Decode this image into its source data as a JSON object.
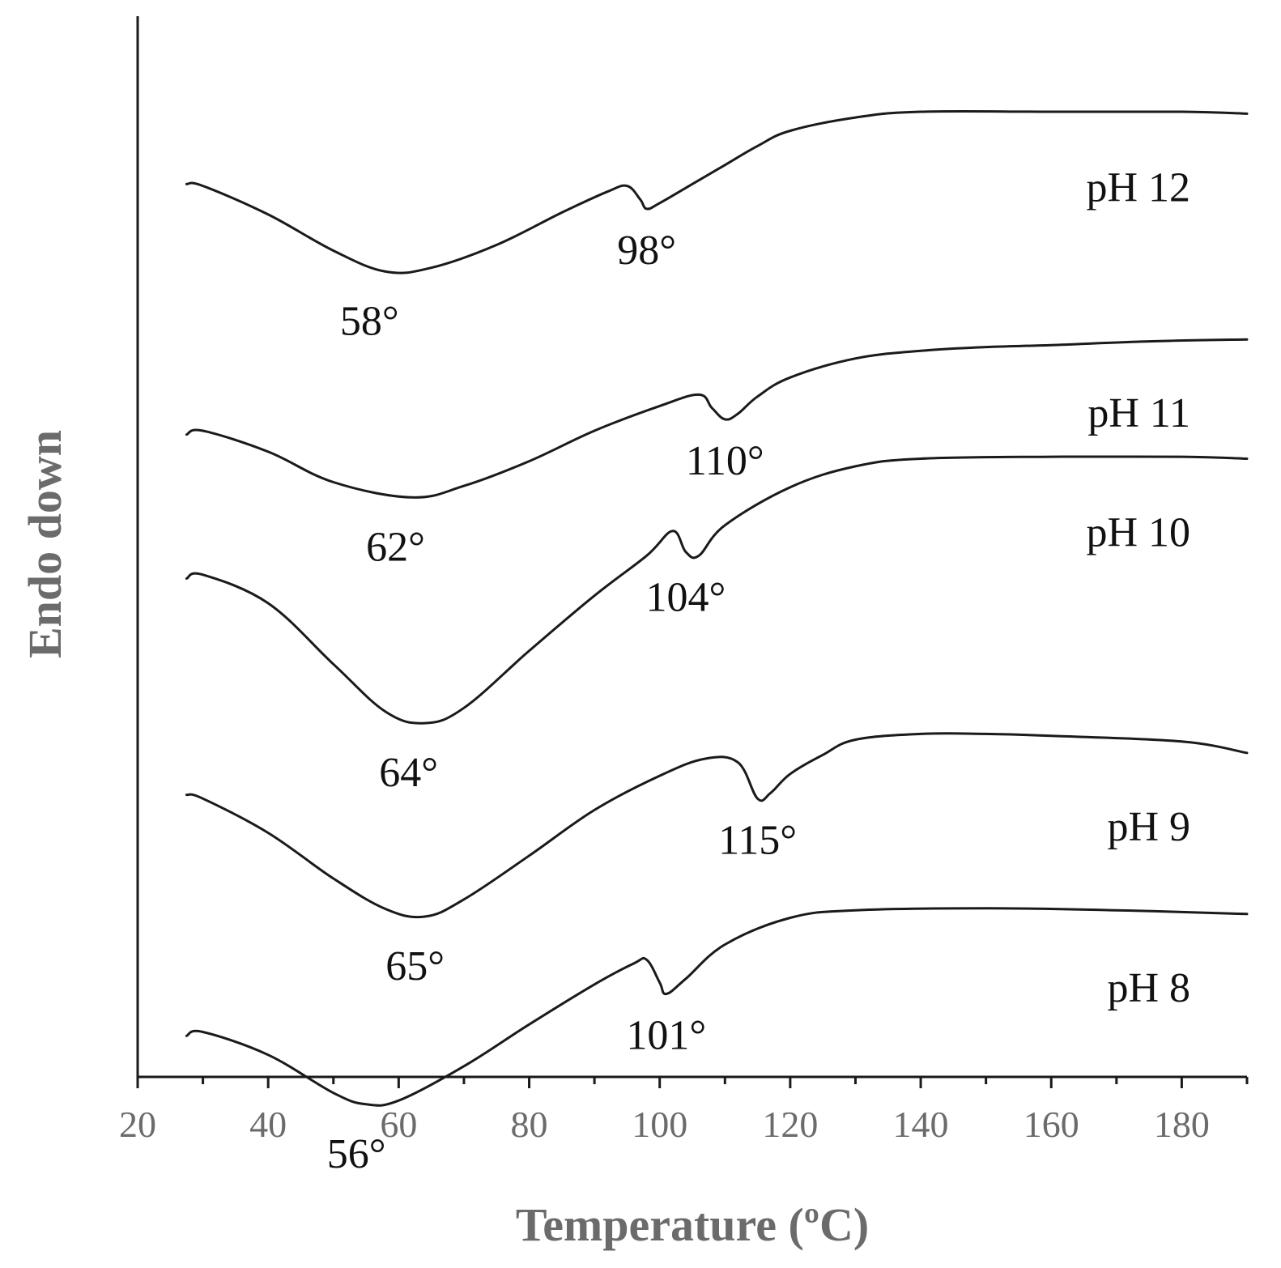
{
  "chart_data": {
    "type": "line",
    "title": "",
    "xlabel": "Temperature (ºC)",
    "ylabel": "Endo down",
    "xlim": [
      20,
      190
    ],
    "xticks": [
      20,
      40,
      60,
      80,
      100,
      120,
      140,
      160,
      180
    ],
    "minor_step": 10,
    "grid": false,
    "series": [
      {
        "name": "pH 12",
        "label": "pH 12",
        "baseline": 4,
        "x": [
          27.5,
          30,
          40,
          50,
          58,
          65,
          75,
          85,
          92,
          95,
          97,
          98,
          100,
          105,
          110,
          115,
          120,
          130,
          140,
          160,
          180,
          190
        ],
        "y": [
          0.82,
          0.81,
          0.66,
          0.47,
          0.36,
          0.38,
          0.5,
          0.67,
          0.78,
          0.81,
          0.74,
          0.69,
          0.72,
          0.82,
          0.92,
          1.02,
          1.1,
          1.17,
          1.2,
          1.2,
          1.2,
          1.19
        ],
        "annotations": [
          {
            "text": "58°",
            "x": 58,
            "y": 0.36,
            "position": "below"
          },
          {
            "text": "98°",
            "x": 98,
            "y": 0.69,
            "position": "below"
          }
        ]
      },
      {
        "name": "pH 11",
        "label": "pH 11",
        "baseline": 3,
        "x": [
          27.5,
          30,
          40,
          50,
          62,
          70,
          80,
          90,
          100,
          106,
          108,
          110,
          112,
          115,
          120,
          130,
          140,
          150,
          160,
          175,
          190
        ],
        "y": [
          0.78,
          0.8,
          0.69,
          0.53,
          0.45,
          0.51,
          0.64,
          0.8,
          0.93,
          0.99,
          0.92,
          0.86,
          0.89,
          0.98,
          1.08,
          1.18,
          1.22,
          1.24,
          1.25,
          1.27,
          1.28
        ],
        "annotations": [
          {
            "text": "62°",
            "x": 62,
            "y": 0.45,
            "position": "below"
          },
          {
            "text": "110°",
            "x": 110,
            "y": 0.86,
            "position": "below"
          }
        ]
      },
      {
        "name": "pH 10",
        "label": "pH 10",
        "baseline": 2,
        "x": [
          27.5,
          30,
          40,
          50,
          58,
          64,
          70,
          80,
          90,
          98,
          102,
          104,
          106,
          110,
          120,
          130,
          140,
          160,
          180,
          190
        ],
        "y": [
          1.3,
          1.32,
          1.17,
          0.85,
          0.6,
          0.54,
          0.62,
          0.92,
          1.21,
          1.42,
          1.55,
          1.44,
          1.42,
          1.58,
          1.78,
          1.89,
          1.93,
          1.94,
          1.94,
          1.93
        ],
        "annotations": [
          {
            "text": "64°",
            "x": 64,
            "y": 0.54,
            "position": "below"
          },
          {
            "text": "104°",
            "x": 104,
            "y": 1.42,
            "position": "below"
          }
        ]
      },
      {
        "name": "pH 9",
        "label": "pH 9",
        "baseline": 1,
        "x": [
          27.5,
          30,
          40,
          50,
          58,
          64,
          70,
          80,
          90,
          100,
          107,
          112,
          115,
          117,
          120,
          125,
          130,
          140,
          150,
          160,
          180,
          190
        ],
        "y": [
          1.44,
          1.42,
          1.24,
          1.0,
          0.84,
          0.8,
          0.89,
          1.12,
          1.36,
          1.54,
          1.63,
          1.61,
          1.42,
          1.45,
          1.55,
          1.65,
          1.73,
          1.76,
          1.76,
          1.75,
          1.72,
          1.66
        ],
        "annotations": [
          {
            "text": "65°",
            "x": 65,
            "y": 0.8,
            "position": "below"
          },
          {
            "text": "115°",
            "x": 115,
            "y": 1.42,
            "position": "below"
          }
        ]
      },
      {
        "name": "pH 8",
        "label": "pH 8",
        "baseline": 0,
        "x": [
          27.5,
          30,
          40,
          50,
          55,
          60,
          70,
          80,
          90,
          96,
          98,
          100,
          101,
          104,
          110,
          120,
          130,
          150,
          170,
          190
        ],
        "y": [
          1.45,
          1.47,
          1.35,
          1.15,
          1.09,
          1.11,
          1.29,
          1.51,
          1.72,
          1.83,
          1.85,
          1.73,
          1.67,
          1.75,
          1.93,
          2.07,
          2.11,
          2.12,
          2.11,
          2.09
        ],
        "annotations": [
          {
            "text": "56°",
            "x": 56,
            "y": 1.09,
            "position": "below"
          },
          {
            "text": "101°",
            "x": 101,
            "y": 1.67,
            "position": "below"
          }
        ]
      }
    ]
  }
}
